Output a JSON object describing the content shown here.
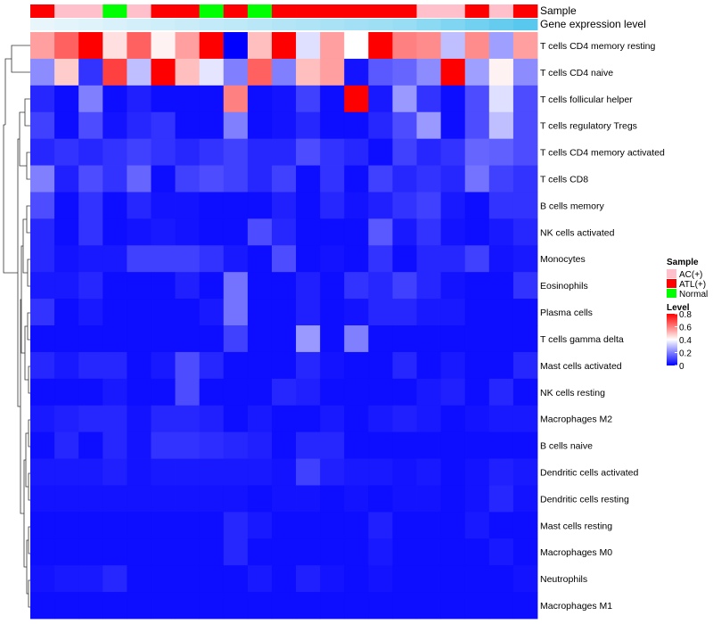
{
  "chart_data": {
    "type": "heatmap",
    "title": "",
    "annotation_rows": [
      {
        "label": "Sample"
      },
      {
        "label": "Gene expression level"
      }
    ],
    "sample_groups": [
      "ATL(+)",
      "AC(+)",
      "AC(+)",
      "Normal",
      "AC(+)",
      "ATL(+)",
      "ATL(+)",
      "Normal",
      "ATL(+)",
      "Normal",
      "ATL(+)",
      "ATL(+)",
      "ATL(+)",
      "ATL(+)",
      "ATL(+)",
      "ATL(+)",
      "AC(+)",
      "AC(+)",
      "ATL(+)",
      "AC(+)",
      "ATL(+)"
    ],
    "gene_expression_level": [
      0.1,
      0.12,
      0.14,
      0.16,
      0.18,
      0.2,
      0.22,
      0.24,
      0.26,
      0.28,
      0.3,
      0.32,
      0.34,
      0.36,
      0.38,
      0.4,
      0.45,
      0.5,
      0.55,
      0.6,
      0.65
    ],
    "rows": [
      "T cells CD4 memory resting",
      "T cells CD4 naive",
      "T cells follicular helper",
      "T cells regulatory  Tregs",
      "T cells CD4 memory activated",
      "T cells CD8",
      "B cells memory",
      "NK cells activated",
      "Monocytes",
      "Eosinophils",
      "Plasma cells",
      "T cells gamma delta",
      "Mast cells activated",
      "NK cells resting",
      "Macrophages M2",
      "B cells naive",
      "Dendritic cells activated",
      "Dendritic cells resting",
      "Mast cells resting",
      "Macrophages M0",
      "Neutrophils",
      "Macrophages M1"
    ],
    "values": [
      [
        0.55,
        0.65,
        0.8,
        0.45,
        0.65,
        0.42,
        0.55,
        0.8,
        0.0,
        0.5,
        0.8,
        0.35,
        0.55,
        0.4,
        0.8,
        0.6,
        0.58,
        0.3,
        0.58,
        0.25,
        0.55
      ],
      [
        0.22,
        0.48,
        0.08,
        0.7,
        0.3,
        0.8,
        0.5,
        0.36,
        0.2,
        0.65,
        0.2,
        0.5,
        0.55,
        0.03,
        0.14,
        0.16,
        0.22,
        0.8,
        0.25,
        0.42,
        0.22
      ],
      [
        0.06,
        0.02,
        0.2,
        0.02,
        0.05,
        0.02,
        0.02,
        0.02,
        0.6,
        0.02,
        0.03,
        0.1,
        0.02,
        0.8,
        0.04,
        0.24,
        0.08,
        0.02,
        0.12,
        0.35,
        0.12
      ],
      [
        0.1,
        0.02,
        0.12,
        0.03,
        0.06,
        0.08,
        0.02,
        0.02,
        0.2,
        0.02,
        0.03,
        0.06,
        0.02,
        0.02,
        0.06,
        0.12,
        0.24,
        0.02,
        0.12,
        0.3,
        0.12
      ],
      [
        0.06,
        0.08,
        0.06,
        0.08,
        0.1,
        0.08,
        0.06,
        0.08,
        0.1,
        0.06,
        0.06,
        0.12,
        0.08,
        0.06,
        0.02,
        0.1,
        0.06,
        0.08,
        0.16,
        0.15,
        0.12
      ],
      [
        0.2,
        0.05,
        0.12,
        0.08,
        0.16,
        0.02,
        0.1,
        0.12,
        0.1,
        0.06,
        0.1,
        0.02,
        0.08,
        0.02,
        0.1,
        0.06,
        0.08,
        0.06,
        0.18,
        0.1,
        0.08
      ],
      [
        0.12,
        0.02,
        0.08,
        0.02,
        0.06,
        0.03,
        0.03,
        0.02,
        0.02,
        0.02,
        0.05,
        0.02,
        0.06,
        0.03,
        0.05,
        0.08,
        0.1,
        0.04,
        0.02,
        0.08,
        0.08
      ],
      [
        0.06,
        0.02,
        0.08,
        0.02,
        0.03,
        0.04,
        0.03,
        0.02,
        0.02,
        0.12,
        0.06,
        0.02,
        0.02,
        0.02,
        0.14,
        0.04,
        0.08,
        0.03,
        0.02,
        0.04,
        0.06
      ],
      [
        0.06,
        0.03,
        0.04,
        0.04,
        0.1,
        0.1,
        0.1,
        0.08,
        0.04,
        0.02,
        0.12,
        0.02,
        0.03,
        0.02,
        0.08,
        0.02,
        0.06,
        0.06,
        0.1,
        0.03,
        0.04
      ],
      [
        0.04,
        0.04,
        0.06,
        0.02,
        0.02,
        0.02,
        0.05,
        0.02,
        0.18,
        0.02,
        0.02,
        0.05,
        0.02,
        0.08,
        0.06,
        0.1,
        0.06,
        0.03,
        0.02,
        0.02,
        0.08
      ],
      [
        0.08,
        0.02,
        0.04,
        0.02,
        0.02,
        0.02,
        0.02,
        0.04,
        0.18,
        0.02,
        0.02,
        0.05,
        0.02,
        0.03,
        0.06,
        0.06,
        0.04,
        0.04,
        0.02,
        0.02,
        0.02
      ],
      [
        0.02,
        0.02,
        0.02,
        0.02,
        0.02,
        0.02,
        0.02,
        0.02,
        0.1,
        0.02,
        0.02,
        0.24,
        0.02,
        0.2,
        0.02,
        0.02,
        0.02,
        0.02,
        0.02,
        0.02,
        0.02
      ],
      [
        0.06,
        0.04,
        0.06,
        0.06,
        0.02,
        0.04,
        0.12,
        0.06,
        0.02,
        0.02,
        0.02,
        0.06,
        0.03,
        0.02,
        0.02,
        0.06,
        0.02,
        0.04,
        0.02,
        0.02,
        0.06
      ],
      [
        0.02,
        0.02,
        0.02,
        0.04,
        0.02,
        0.02,
        0.12,
        0.02,
        0.02,
        0.02,
        0.06,
        0.05,
        0.02,
        0.02,
        0.02,
        0.02,
        0.04,
        0.05,
        0.02,
        0.06,
        0.02
      ],
      [
        0.04,
        0.05,
        0.06,
        0.06,
        0.03,
        0.06,
        0.06,
        0.05,
        0.02,
        0.04,
        0.02,
        0.02,
        0.04,
        0.02,
        0.04,
        0.05,
        0.04,
        0.02,
        0.03,
        0.04,
        0.04
      ],
      [
        0.02,
        0.06,
        0.02,
        0.06,
        0.03,
        0.08,
        0.08,
        0.07,
        0.06,
        0.05,
        0.02,
        0.06,
        0.06,
        0.02,
        0.02,
        0.02,
        0.02,
        0.02,
        0.02,
        0.02,
        0.02
      ],
      [
        0.04,
        0.04,
        0.04,
        0.05,
        0.03,
        0.04,
        0.04,
        0.04,
        0.04,
        0.04,
        0.03,
        0.1,
        0.05,
        0.04,
        0.04,
        0.03,
        0.04,
        0.02,
        0.03,
        0.05,
        0.04
      ],
      [
        0.03,
        0.03,
        0.03,
        0.03,
        0.03,
        0.03,
        0.03,
        0.03,
        0.03,
        0.02,
        0.03,
        0.03,
        0.02,
        0.03,
        0.02,
        0.03,
        0.03,
        0.02,
        0.03,
        0.06,
        0.03
      ],
      [
        0.02,
        0.02,
        0.02,
        0.02,
        0.02,
        0.02,
        0.02,
        0.02,
        0.06,
        0.04,
        0.02,
        0.02,
        0.02,
        0.02,
        0.05,
        0.02,
        0.02,
        0.02,
        0.04,
        0.02,
        0.02
      ],
      [
        0.02,
        0.02,
        0.02,
        0.02,
        0.02,
        0.02,
        0.02,
        0.02,
        0.06,
        0.02,
        0.02,
        0.02,
        0.02,
        0.02,
        0.04,
        0.02,
        0.02,
        0.02,
        0.02,
        0.04,
        0.02
      ],
      [
        0.03,
        0.04,
        0.04,
        0.06,
        0.02,
        0.02,
        0.02,
        0.02,
        0.02,
        0.04,
        0.02,
        0.05,
        0.03,
        0.02,
        0.03,
        0.02,
        0.02,
        0.02,
        0.02,
        0.02,
        0.03
      ],
      [
        0.02,
        0.02,
        0.02,
        0.02,
        0.02,
        0.02,
        0.02,
        0.02,
        0.02,
        0.02,
        0.02,
        0.02,
        0.02,
        0.02,
        0.02,
        0.02,
        0.02,
        0.02,
        0.02,
        0.02,
        0.02
      ]
    ],
    "color_scale": {
      "min": 0,
      "max": 0.8,
      "low": "#0000ff",
      "mid": "#ffffff",
      "high": "#ff0000",
      "mid_value": 0.4
    },
    "legend": {
      "sample_title": "Sample",
      "sample_entries": [
        {
          "label": "AC(+)",
          "color": "#ffc0cb"
        },
        {
          "label": "ATL(+)",
          "color": "#ff0000"
        },
        {
          "label": "Normal",
          "color": "#00ff00"
        }
      ],
      "level_title": "Level",
      "level_ticks": [
        {
          "value": 0.8,
          "label": "0.8"
        },
        {
          "value": 0.6,
          "label": "0.6"
        },
        {
          "value": 0.4,
          "label": "0.4"
        },
        {
          "value": 0.2,
          "label": "0.2"
        },
        {
          "value": 0,
          "label": "0"
        }
      ]
    },
    "dendrogram": "row clustering on left",
    "gene_level_palette": {
      "low": "#e8f6fb",
      "high": "#58c8ee"
    }
  }
}
